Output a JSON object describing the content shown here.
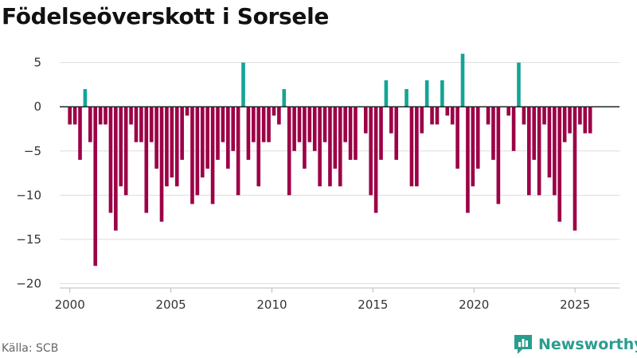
{
  "chart_data": {
    "type": "bar",
    "title": "Födelseöverskott i Sorsele",
    "xlabel": "",
    "ylabel": "",
    "x_ticks": [
      "2000",
      "2005",
      "2010",
      "2015",
      "2020",
      "2025"
    ],
    "y_ticks": [
      "5",
      "0",
      "−5",
      "−10",
      "−15",
      "−20"
    ],
    "ylim": [
      -20.5,
      6.5
    ],
    "xlim": [
      1999.5,
      2027.2
    ],
    "grid": true,
    "colors": {
      "positive": "#12a596",
      "negative": "#9c0046"
    },
    "values": [
      -2,
      -2,
      -6,
      2,
      -4,
      -18,
      -2,
      -2,
      -12,
      -14,
      -9,
      -10,
      -2,
      -4,
      -4,
      -12,
      -4,
      -7,
      -13,
      -9,
      -8,
      -9,
      -6,
      -1,
      -11,
      -10,
      -8,
      -7,
      -11,
      -6,
      -4,
      -7,
      -5,
      -10,
      5,
      -6,
      -4,
      -9,
      -4,
      -4,
      -1,
      -2,
      2,
      -10,
      -5,
      -4,
      -7,
      -4,
      -5,
      -9,
      -4,
      -9,
      -7,
      -9,
      -4,
      -6,
      -6,
      0,
      -3,
      -10,
      -12,
      -6,
      3,
      -3,
      -6,
      0,
      2,
      -9,
      -9,
      -3,
      3,
      -2,
      -2,
      3,
      -1,
      -2,
      -7,
      6,
      -12,
      -9,
      -7,
      0,
      -2,
      -6,
      -11,
      0,
      -1,
      -5,
      5,
      -2,
      -10,
      -6,
      -10,
      -2,
      -8,
      -10,
      -13,
      -4,
      -3,
      -14,
      -2,
      -3,
      -3
    ]
  },
  "footer": {
    "source": "Källa: SCB",
    "brand": "Newsworthy"
  }
}
